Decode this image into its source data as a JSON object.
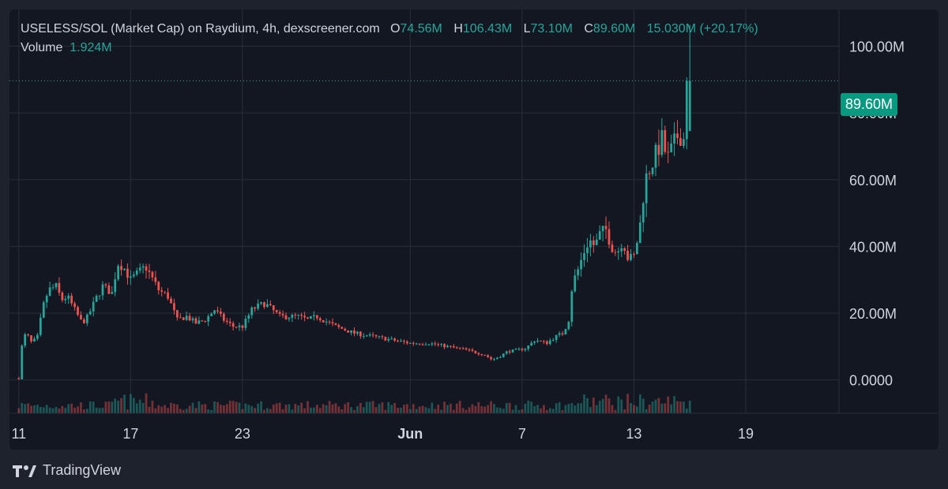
{
  "legend": {
    "symbol": "USELESS/SOL (Market Cap) on Raydium, 4h, dexscreener.com",
    "o_label": "O",
    "o": "74.56M",
    "h_label": "H",
    "h": "106.43M",
    "l_label": "L",
    "l": "73.10M",
    "c_label": "C",
    "c": "89.60M",
    "change": "15.030M (+20.17%)",
    "volume_label": "Volume",
    "volume": "1.924M"
  },
  "price_tag": "89.60M",
  "brand": "TradingView",
  "colors": {
    "up": "#26a69a",
    "down": "#ef5350",
    "tag": "#089981",
    "grid": "#2a2e39",
    "text": "#d1d4dc"
  },
  "chart_data": {
    "type": "candlestick",
    "interval": "4h",
    "y_tick_labels": [
      "100.00M",
      "80.00M",
      "60.00M",
      "40.00M",
      "20.00M",
      "0.0000"
    ],
    "y_ticks": [
      100,
      80,
      60,
      40,
      20,
      0
    ],
    "y_unit": "M",
    "ylim": [
      -10,
      111
    ],
    "x_tick_labels": [
      "11",
      "17",
      "23",
      "Jun",
      "7",
      "13",
      "19"
    ],
    "x_ticks_day": [
      0,
      6,
      12,
      21,
      27,
      33,
      39
    ],
    "xlim_day": [
      -0.5,
      44
    ],
    "last_close": 89.6,
    "anchors_day_close": [
      [
        0,
        0.5
      ],
      [
        0.2,
        12
      ],
      [
        0.4,
        14
      ],
      [
        0.7,
        11
      ],
      [
        1,
        13
      ],
      [
        1.3,
        22
      ],
      [
        1.6,
        27
      ],
      [
        2,
        28
      ],
      [
        2.3,
        24
      ],
      [
        2.6,
        25
      ],
      [
        3,
        21
      ],
      [
        3.4,
        17
      ],
      [
        3.7,
        19
      ],
      [
        4.2,
        25
      ],
      [
        4.5,
        28
      ],
      [
        5,
        26
      ],
      [
        5.3,
        35
      ],
      [
        5.6,
        34
      ],
      [
        6,
        30
      ],
      [
        6.4,
        32
      ],
      [
        6.8,
        34
      ],
      [
        7.1,
        31
      ],
      [
        7.5,
        27
      ],
      [
        8,
        25
      ],
      [
        8.5,
        18
      ],
      [
        9,
        19
      ],
      [
        9.5,
        17
      ],
      [
        10,
        18
      ],
      [
        10.5,
        21
      ],
      [
        11,
        18
      ],
      [
        11.5,
        16
      ],
      [
        12,
        16
      ],
      [
        12.5,
        21
      ],
      [
        12.8,
        22
      ],
      [
        13.2,
        23
      ],
      [
        13.6,
        21
      ],
      [
        14,
        19
      ],
      [
        15,
        19
      ],
      [
        15.5,
        18
      ],
      [
        16,
        19
      ],
      [
        17,
        16
      ],
      [
        18,
        14
      ],
      [
        19,
        13
      ],
      [
        20,
        12
      ],
      [
        21,
        11
      ],
      [
        22,
        11
      ],
      [
        23,
        10
      ],
      [
        24,
        9
      ],
      [
        25,
        7.5
      ],
      [
        25.4,
        6
      ],
      [
        25.8,
        7
      ],
      [
        26.2,
        8.5
      ],
      [
        26.8,
        9
      ],
      [
        27.2,
        9.5
      ],
      [
        27.7,
        12
      ],
      [
        28.3,
        11
      ],
      [
        28.8,
        13
      ],
      [
        29.2,
        14
      ],
      [
        29.5,
        18
      ],
      [
        29.7,
        29
      ],
      [
        30,
        33
      ],
      [
        30.3,
        38
      ],
      [
        30.6,
        42
      ],
      [
        30.9,
        40
      ],
      [
        31.2,
        44
      ],
      [
        31.5,
        45
      ],
      [
        31.8,
        40
      ],
      [
        32.1,
        38
      ],
      [
        32.4,
        42
      ],
      [
        32.7,
        36
      ],
      [
        33,
        37
      ],
      [
        33.3,
        45
      ],
      [
        33.6,
        60
      ],
      [
        33.9,
        64
      ],
      [
        34.2,
        68
      ],
      [
        34.5,
        72
      ],
      [
        34.8,
        66
      ],
      [
        35.1,
        70
      ],
      [
        35.4,
        74
      ],
      [
        35.7,
        72
      ],
      [
        36,
        89.6
      ]
    ],
    "volume": "1.924M"
  }
}
